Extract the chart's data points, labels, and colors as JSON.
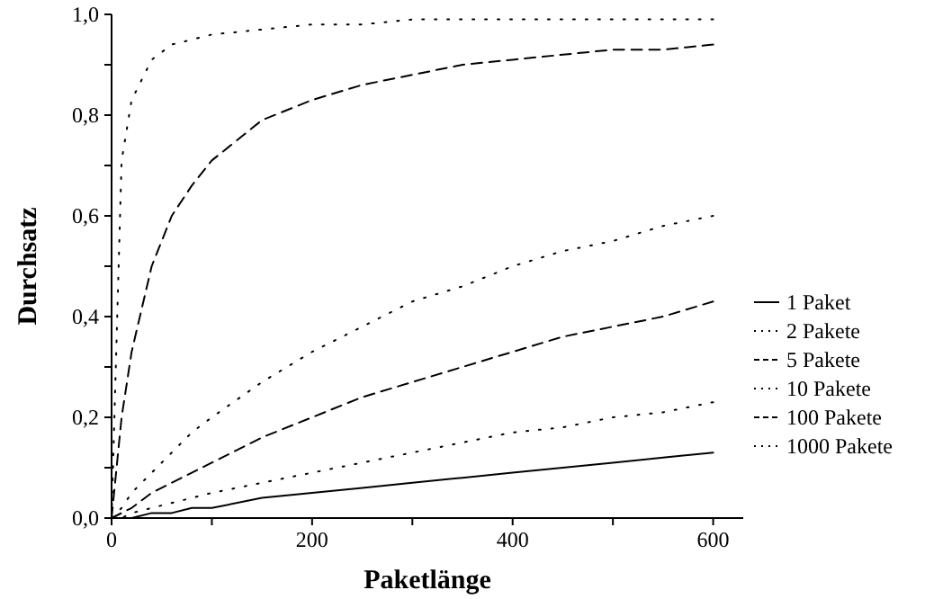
{
  "chart_data": {
    "type": "line",
    "xlabel": "Paketlänge",
    "ylabel": "Durchsatz",
    "x": [
      0,
      10,
      20,
      40,
      60,
      80,
      100,
      150,
      200,
      250,
      300,
      350,
      400,
      450,
      500,
      550,
      600
    ],
    "xlim": [
      0,
      630
    ],
    "xticks": [
      0,
      {
        "value": 100,
        "label": null
      },
      200,
      {
        "value": 300,
        "label": null
      },
      400,
      {
        "value": 500,
        "label": null
      },
      600
    ],
    "ylim": [
      0,
      1
    ],
    "yticks": [
      {
        "value": 0,
        "label": "0,0"
      },
      {
        "value": 0.1,
        "label": null
      },
      {
        "value": 0.2,
        "label": "0,2"
      },
      {
        "value": 0.3,
        "label": null
      },
      {
        "value": 0.4,
        "label": "0,4"
      },
      {
        "value": 0.5,
        "label": null
      },
      {
        "value": 0.6,
        "label": "0,6"
      },
      {
        "value": 0.7,
        "label": null
      },
      {
        "value": 0.8,
        "label": "0,8"
      },
      {
        "value": 0.9,
        "label": null
      },
      {
        "value": 1,
        "label": "1,0"
      }
    ],
    "grid": false,
    "legend": "right",
    "marker": "none",
    "series": [
      {
        "name": "1 Paket",
        "color": "#000000",
        "line_style": "solid",
        "values": [
          0,
          0.0,
          0.0,
          0.01,
          0.01,
          0.02,
          0.02,
          0.04,
          0.05,
          0.06,
          0.07,
          0.08,
          0.09,
          0.1,
          0.11,
          0.12,
          0.13
        ]
      },
      {
        "name": "2 Pakete",
        "color": "#000000",
        "line_style": "dotted",
        "values": [
          0,
          0.0,
          0.01,
          0.02,
          0.03,
          0.04,
          0.05,
          0.07,
          0.09,
          0.11,
          0.13,
          0.15,
          0.17,
          0.18,
          0.2,
          0.21,
          0.23
        ]
      },
      {
        "name": "5 Pakete",
        "color": "#000000",
        "line_style": "dashed",
        "values": [
          0,
          0.01,
          0.02,
          0.05,
          0.07,
          0.09,
          0.11,
          0.16,
          0.2,
          0.24,
          0.27,
          0.3,
          0.33,
          0.36,
          0.38,
          0.4,
          0.43
        ]
      },
      {
        "name": "10 Pakete",
        "color": "#000000",
        "line_style": "dotted",
        "values": [
          0,
          0.02,
          0.05,
          0.09,
          0.13,
          0.17,
          0.2,
          0.27,
          0.33,
          0.38,
          0.43,
          0.46,
          0.5,
          0.53,
          0.55,
          0.58,
          0.6
        ]
      },
      {
        "name": "100 Pakete",
        "color": "#000000",
        "line_style": "dashed",
        "values": [
          0,
          0.2,
          0.33,
          0.5,
          0.6,
          0.66,
          0.71,
          0.79,
          0.83,
          0.86,
          0.88,
          0.9,
          0.91,
          0.92,
          0.93,
          0.93,
          0.94
        ]
      },
      {
        "name": "1000 Pakete",
        "color": "#000000",
        "line_style": "dotted",
        "values": [
          0,
          0.71,
          0.83,
          0.91,
          0.94,
          0.95,
          0.96,
          0.97,
          0.98,
          0.98,
          0.99,
          0.99,
          0.99,
          0.99,
          0.99,
          0.99,
          0.99
        ]
      }
    ]
  }
}
